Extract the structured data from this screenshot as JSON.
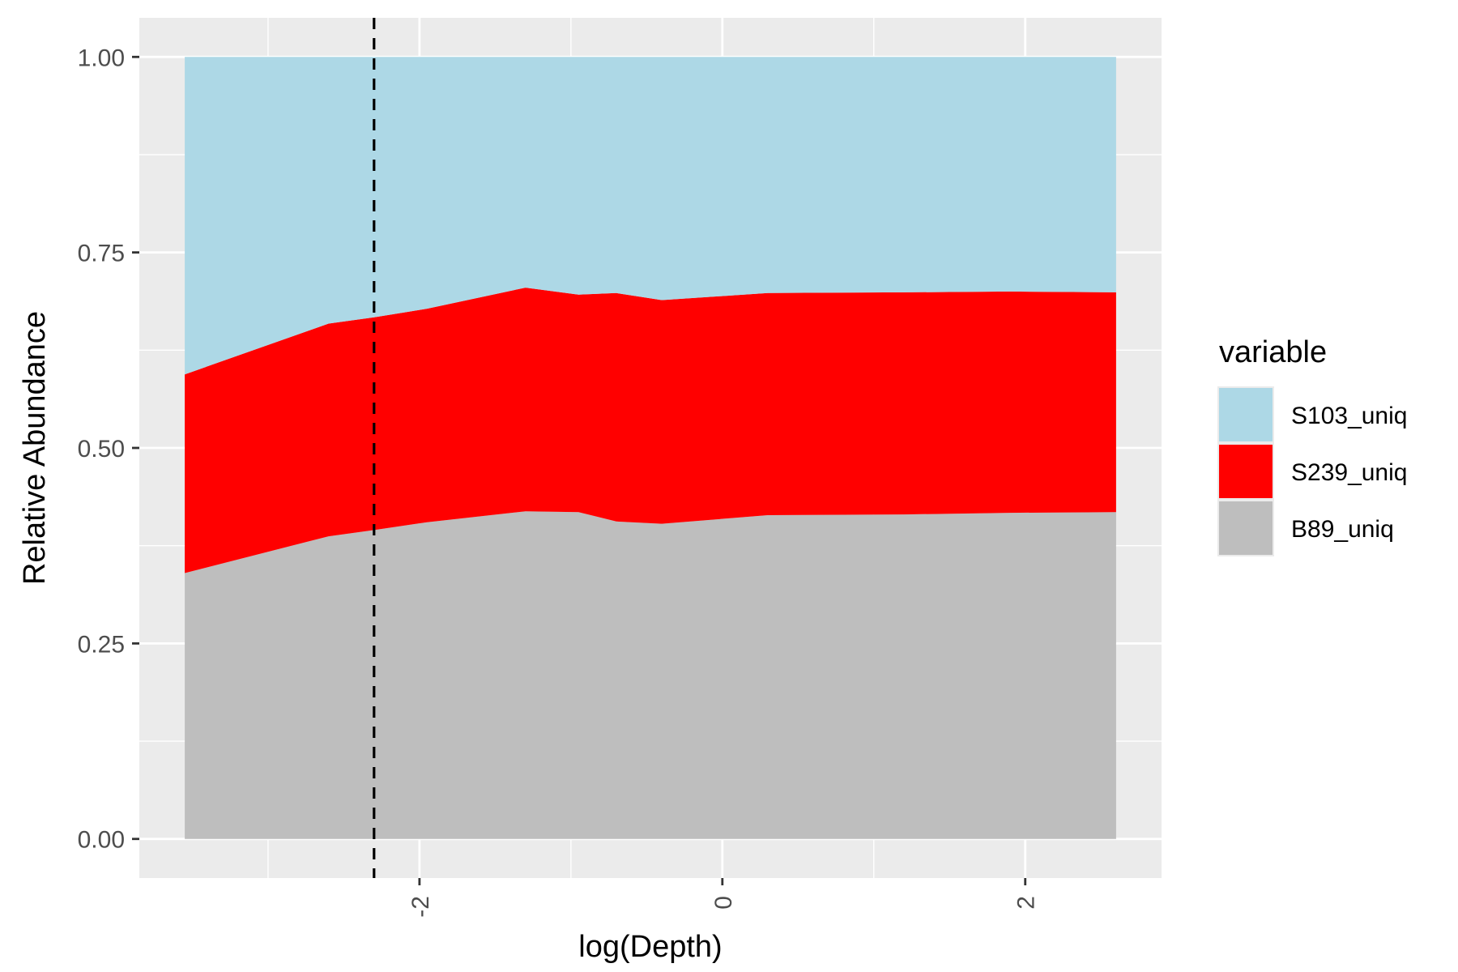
{
  "chart_data": {
    "type": "area",
    "stacked": true,
    "normalized": true,
    "x_values": [
      -3.55,
      -2.6,
      -2.3,
      -1.95,
      -1.3,
      -0.95,
      -0.7,
      -0.4,
      0.3,
      1.2,
      1.9,
      2.6
    ],
    "series": [
      {
        "name": "B89_uniq",
        "color": "#BEBEBE",
        "values": [
          0.34,
          0.387,
          0.395,
          0.405,
          0.419,
          0.418,
          0.406,
          0.403,
          0.414,
          0.415,
          0.417,
          0.418
        ]
      },
      {
        "name": "S239_uniq",
        "color": "#FF0000",
        "values": [
          0.254,
          0.272,
          0.272,
          0.273,
          0.286,
          0.278,
          0.292,
          0.286,
          0.284,
          0.284,
          0.283,
          0.281
        ]
      },
      {
        "name": "S103_uniq",
        "color": "#ADD8E6",
        "values": [
          0.406,
          0.341,
          0.333,
          0.322,
          0.295,
          0.304,
          0.302,
          0.311,
          0.302,
          0.301,
          0.3,
          0.301
        ]
      }
    ],
    "vline": {
      "x": -2.3,
      "style": "dashed",
      "color": "#000000"
    },
    "xlabel": "log(Depth)",
    "ylabel": "Relative Abundance",
    "xlim": [
      -3.85,
      2.9
    ],
    "ylim": [
      -0.05,
      1.05
    ],
    "x_ticks": [
      -2,
      0,
      2
    ],
    "x_tick_labels": [
      "-2",
      "0",
      "2"
    ],
    "x_minor_ticks": [
      -3,
      -1,
      1
    ],
    "y_ticks": [
      0,
      0.25,
      0.5,
      0.75,
      1
    ],
    "y_tick_labels": [
      "0.00",
      "0.25",
      "0.50",
      "0.75",
      "1.00"
    ],
    "grid": true,
    "panel_background": "#EBEBEB",
    "legend": {
      "title": "variable",
      "position": "right",
      "entries": [
        "S103_uniq",
        "S239_uniq",
        "B89_uniq"
      ]
    }
  }
}
